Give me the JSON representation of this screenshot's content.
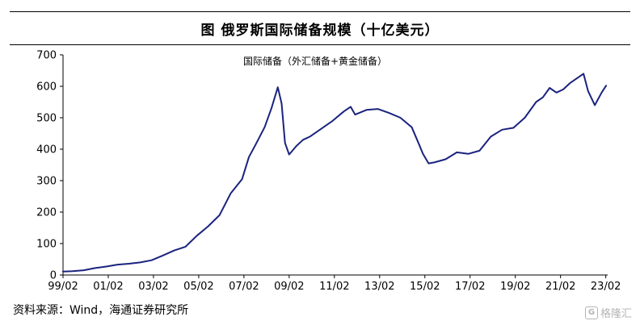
{
  "header": {
    "title": "图    俄罗斯国际储备规模（十亿美元）"
  },
  "source_note": "资料来源：Wind，海通证券研究所",
  "watermark": {
    "icon": "g-logo-icon",
    "text": "格隆汇"
  },
  "colors": {
    "line": "#1a237e",
    "axis": "#000000"
  },
  "chart_data": {
    "type": "line",
    "title": "国际储备（外汇储备+黄金储备）",
    "xlabel": "",
    "ylabel": "",
    "xlim": [
      1999.083,
      2023.167
    ],
    "ylim": [
      0,
      700
    ],
    "yticks": [
      0,
      100,
      200,
      300,
      400,
      500,
      600,
      700
    ],
    "xticks": [
      {
        "label": "99/02",
        "x": 1999.083
      },
      {
        "label": "01/02",
        "x": 2001.083
      },
      {
        "label": "03/02",
        "x": 2003.083
      },
      {
        "label": "05/02",
        "x": 2005.083
      },
      {
        "label": "07/02",
        "x": 2007.083
      },
      {
        "label": "09/02",
        "x": 2009.083
      },
      {
        "label": "11/02",
        "x": 2011.083
      },
      {
        "label": "13/02",
        "x": 2013.083
      },
      {
        "label": "15/02",
        "x": 2015.083
      },
      {
        "label": "17/02",
        "x": 2017.083
      },
      {
        "label": "19/02",
        "x": 2019.083
      },
      {
        "label": "21/02",
        "x": 2021.083
      },
      {
        "label": "23/02",
        "x": 2023.083
      }
    ],
    "grid": false,
    "legend": "none",
    "series": [
      {
        "x": [
          1999.08,
          1999.5,
          2000.0,
          2000.5,
          2001.0,
          2001.5,
          2002.0,
          2002.5,
          2003.0,
          2003.5,
          2004.0,
          2004.5,
          2005.0,
          2005.5,
          2006.0,
          2006.5,
          2007.0,
          2007.3,
          2007.6,
          2008.0,
          2008.3,
          2008.58,
          2008.75,
          2008.9,
          2009.08,
          2009.4,
          2009.7,
          2010.0,
          2010.5,
          2011.0,
          2011.5,
          2011.8,
          2012.0,
          2012.5,
          2013.0,
          2013.5,
          2014.0,
          2014.5,
          2014.8,
          2015.0,
          2015.25,
          2015.5,
          2016.0,
          2016.5,
          2017.0,
          2017.5,
          2018.0,
          2018.5,
          2019.0,
          2019.5,
          2020.0,
          2020.3,
          2020.6,
          2020.9,
          2021.2,
          2021.5,
          2021.9,
          2022.1,
          2022.3,
          2022.6,
          2022.9,
          2023.1
        ],
        "values": [
          11,
          12,
          15,
          22,
          27,
          33,
          36,
          40,
          47,
          62,
          78,
          90,
          125,
          155,
          190,
          260,
          305,
          375,
          415,
          470,
          530,
          597,
          545,
          420,
          383,
          410,
          430,
          440,
          465,
          490,
          520,
          535,
          510,
          525,
          528,
          515,
          500,
          470,
          420,
          385,
          355,
          358,
          368,
          390,
          385,
          395,
          440,
          462,
          468,
          500,
          550,
          565,
          595,
          580,
          590,
          610,
          630,
          640,
          585,
          540,
          580,
          602
        ]
      }
    ]
  }
}
